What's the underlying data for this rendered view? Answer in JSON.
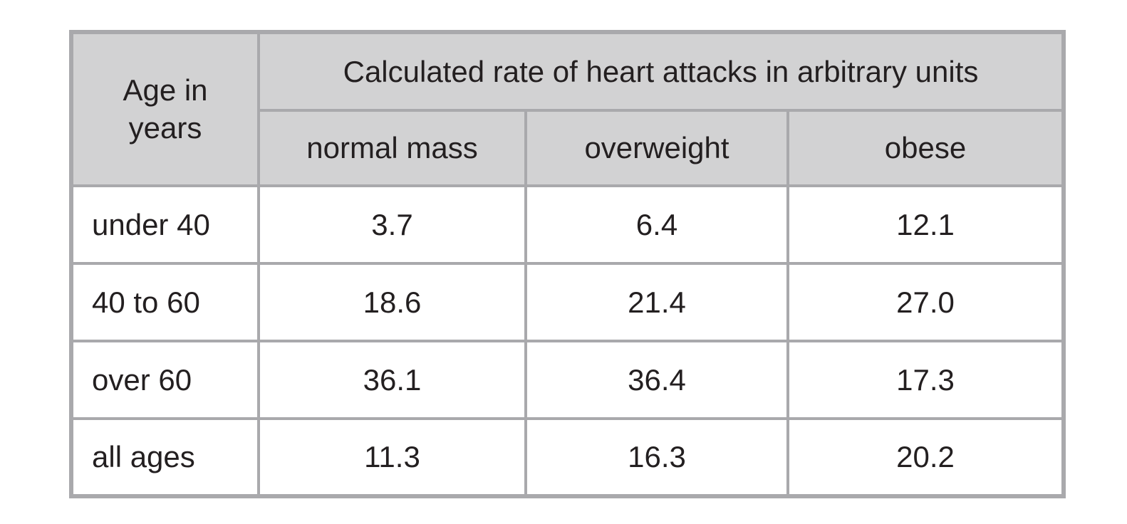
{
  "colors": {
    "header_bg": "#d2d2d3",
    "border": "#a9a9ac",
    "cell_bg": "#ffffff",
    "text": "#231f20",
    "page_bg": "#ffffff"
  },
  "table": {
    "corner_header": "Age in\nyears",
    "group_header": "Calculated rate of heart attacks in arbitrary units",
    "column_headers": [
      "normal mass",
      "overweight",
      "obese"
    ],
    "rows": [
      {
        "label": "under 40",
        "values": [
          "3.7",
          "6.4",
          "12.1"
        ]
      },
      {
        "label": "40 to 60",
        "values": [
          "18.6",
          "21.4",
          "27.0"
        ]
      },
      {
        "label": "over 60",
        "values": [
          "36.1",
          "36.4",
          "17.3"
        ]
      },
      {
        "label": "all ages",
        "values": [
          "11.3",
          "16.3",
          "20.2"
        ]
      }
    ]
  },
  "chart_data": {
    "type": "table",
    "title": "Calculated rate of heart attacks in arbitrary units",
    "row_label_header": "Age in years",
    "categories": [
      "under 40",
      "40 to 60",
      "over 60",
      "all ages"
    ],
    "series": [
      {
        "name": "normal mass",
        "values": [
          3.7,
          18.6,
          36.1,
          11.3
        ]
      },
      {
        "name": "overweight",
        "values": [
          6.4,
          21.4,
          36.4,
          16.3
        ]
      },
      {
        "name": "obese",
        "values": [
          12.1,
          27.0,
          17.3,
          20.2
        ]
      }
    ]
  }
}
